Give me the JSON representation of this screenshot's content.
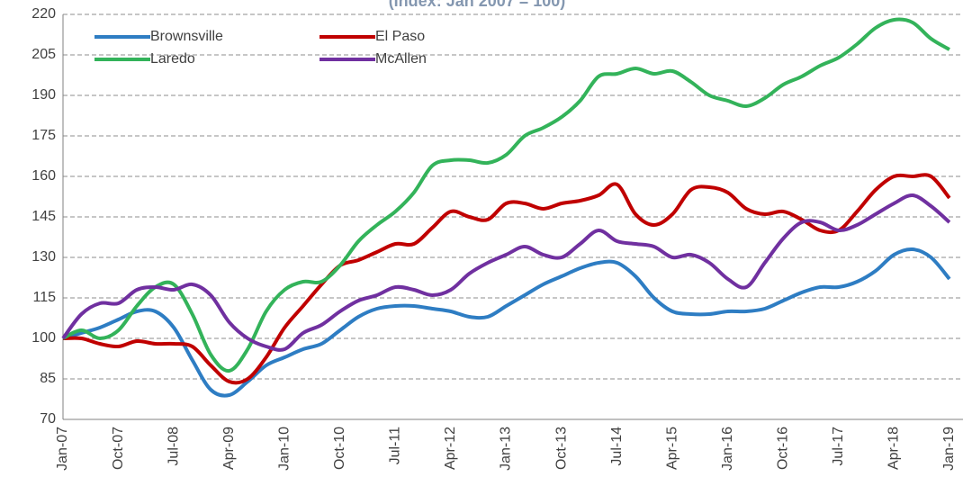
{
  "chart_data": {
    "type": "line",
    "subtitle": "(Index: Jan 2007 = 100)",
    "categories": [
      "Jan-07",
      null,
      null,
      "Oct-07",
      null,
      null,
      "Jul-08",
      null,
      null,
      "Apr-09",
      null,
      null,
      "Jan-10",
      null,
      null,
      "Oct-10",
      null,
      null,
      "Jul-11",
      null,
      null,
      "Apr-12",
      null,
      null,
      "Jan-13",
      null,
      null,
      "Oct-13",
      null,
      null,
      "Jul-14",
      null,
      null,
      "Apr-15",
      null,
      null,
      "Jan-16",
      null,
      null,
      "Oct-16",
      null,
      null,
      "Jul-17",
      null,
      null,
      "Apr-18",
      null,
      null,
      "Jan-19"
    ],
    "series": [
      {
        "name": "Brownsville",
        "color": "#2e7dc3",
        "values": [
          100,
          102,
          104,
          107,
          110,
          110,
          104,
          92,
          81,
          79,
          84,
          90,
          93,
          96,
          98,
          103,
          108,
          111,
          112,
          112,
          111,
          110,
          108,
          108,
          112,
          116,
          120,
          123,
          126,
          128,
          128,
          123,
          115,
          110,
          109,
          109,
          110,
          110,
          111,
          114,
          117,
          119,
          119,
          121,
          125,
          131,
          133,
          130,
          122
        ]
      },
      {
        "name": "El Paso",
        "color": "#c00000",
        "values": [
          100,
          100,
          98,
          97,
          99,
          98,
          98,
          97,
          90,
          84,
          85,
          93,
          104,
          112,
          120,
          127,
          129,
          132,
          135,
          135,
          141,
          147,
          145,
          144,
          150,
          150,
          148,
          150,
          151,
          153,
          157,
          146,
          142,
          146,
          155,
          156,
          154,
          148,
          146,
          147,
          144,
          140,
          140,
          147,
          155,
          160,
          160,
          160,
          152
        ]
      },
      {
        "name": "Laredo",
        "color": "#33b35a",
        "values": [
          100,
          103,
          100,
          103,
          112,
          119,
          120,
          109,
          94,
          88,
          96,
          110,
          118,
          121,
          121,
          127,
          136,
          142,
          147,
          154,
          164,
          166,
          166,
          165,
          168,
          175,
          178,
          182,
          188,
          197,
          198,
          200,
          198,
          199,
          195,
          190,
          188,
          186,
          189,
          194,
          197,
          201,
          204,
          209,
          215,
          218,
          217,
          211,
          207
        ]
      },
      {
        "name": "McAllen",
        "color": "#7030a0",
        "values": [
          100,
          109,
          113,
          113,
          118,
          119,
          118,
          120,
          116,
          106,
          100,
          97,
          96,
          102,
          105,
          110,
          114,
          116,
          119,
          118,
          116,
          118,
          124,
          128,
          131,
          134,
          131,
          130,
          135,
          140,
          136,
          135,
          134,
          130,
          131,
          128,
          122,
          119,
          128,
          137,
          143,
          143,
          140,
          142,
          146,
          150,
          153,
          149,
          143
        ]
      }
    ],
    "ylim": [
      70,
      220
    ],
    "yticks": [
      70,
      85,
      100,
      115,
      130,
      145,
      160,
      175,
      190,
      205,
      220
    ],
    "grid": true,
    "legend": "top-left"
  }
}
